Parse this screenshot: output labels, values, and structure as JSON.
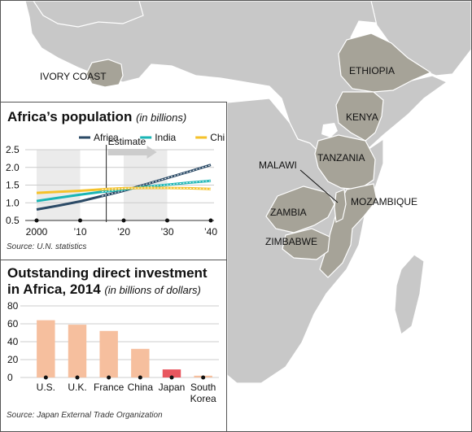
{
  "map": {
    "labels": {
      "ivory_coast": "IVORY COAST",
      "ethiopia": "ETHIOPIA",
      "kenya": "KENYA",
      "tanzania": "TANZANIA",
      "malawi": "MALAWI",
      "mozambique": "MOZAMBIQUE",
      "zambia": "ZAMBIA",
      "zimbabwe": "ZIMBABWE"
    },
    "colors": {
      "ocean": "#ffffff",
      "land": "#c8c8c8",
      "highlight": "#a6a398",
      "border": "#ffffff"
    }
  },
  "chart_data": [
    {
      "type": "line",
      "title": "Africa’s population",
      "subtitle": "(in billions)",
      "source": "Source: U.N. statistics",
      "x_tick_labels": [
        "2000",
        "’10",
        "’20",
        "’30",
        "’40"
      ],
      "x_ticks": [
        2000,
        2010,
        2020,
        2030,
        2040
      ],
      "xlim": [
        2000,
        2040
      ],
      "ylim": [
        0.5,
        2.5
      ],
      "y_ticks": [
        0.5,
        1.0,
        1.5,
        2.0,
        2.5
      ],
      "y_tick_labels": [
        "0.5",
        "1.0",
        "1.5",
        "2.0",
        "2.5"
      ],
      "estimate_label": "Estimate",
      "estimate_start": 2016,
      "legend_position": "top",
      "series": [
        {
          "name": "Africa",
          "color": "#2b4a66",
          "x": [
            2000,
            2005,
            2010,
            2015,
            2020,
            2025,
            2030,
            2035,
            2040
          ],
          "values": [
            0.81,
            0.92,
            1.04,
            1.19,
            1.34,
            1.52,
            1.7,
            1.88,
            2.07
          ]
        },
        {
          "name": "India",
          "color": "#1ab5b5",
          "x": [
            2000,
            2005,
            2010,
            2015,
            2020,
            2025,
            2030,
            2035,
            2040
          ],
          "values": [
            1.05,
            1.14,
            1.23,
            1.31,
            1.38,
            1.45,
            1.51,
            1.57,
            1.62
          ]
        },
        {
          "name": "China",
          "color": "#f5c22b",
          "x": [
            2000,
            2005,
            2010,
            2015,
            2020,
            2025,
            2030,
            2035,
            2040
          ],
          "values": [
            1.28,
            1.31,
            1.34,
            1.38,
            1.41,
            1.42,
            1.42,
            1.41,
            1.39
          ]
        }
      ]
    },
    {
      "type": "bar",
      "title_line1": "Outstanding direct investment",
      "title_line2": "in Africa, 2014",
      "subtitle": "(in billions of dollars)",
      "source": "Source: Japan External Trade Organization",
      "categories": [
        "U.S.",
        "U.K.",
        "France",
        "China",
        "Japan",
        "South Korea"
      ],
      "category_label_lines": [
        [
          "U.S."
        ],
        [
          "U.K."
        ],
        [
          "France"
        ],
        [
          "China"
        ],
        [
          "Japan"
        ],
        [
          "South",
          "Korea"
        ]
      ],
      "values": [
        64,
        59,
        52,
        32,
        9,
        2
      ],
      "ylim": [
        0,
        80
      ],
      "y_ticks": [
        0,
        20,
        40,
        60,
        80
      ],
      "bar_color": "#f6bf9e",
      "highlight_color": "#e8565e",
      "highlight_category": "Japan"
    }
  ]
}
